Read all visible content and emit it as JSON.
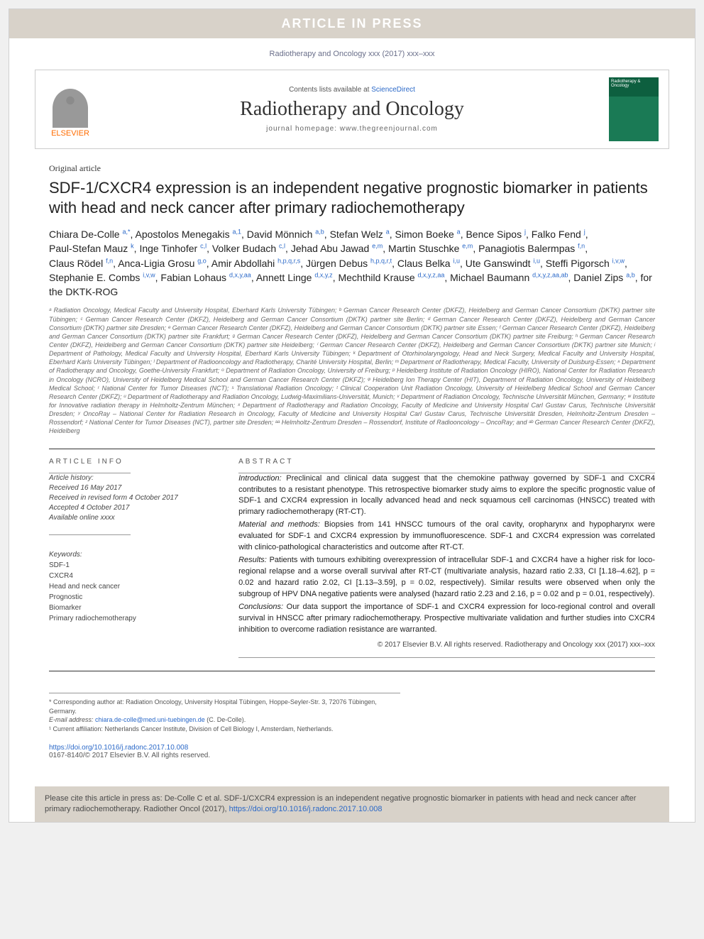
{
  "banner": "ARTICLE IN PRESS",
  "citation_line": "Radiotherapy and Oncology xxx (2017) xxx–xxx",
  "header": {
    "contents_prefix": "Contents lists available at ",
    "contents_link": "ScienceDirect",
    "journal_name": "Radiotherapy and Oncology",
    "homepage_prefix": "journal homepage: ",
    "homepage_url": "www.thegreenjournal.com",
    "publisher": "ELSEVIER",
    "cover_title": "Radiotherapy & Oncology"
  },
  "article_type": "Original article",
  "title": "SDF-1/CXCR4 expression is an independent negative prognostic biomarker in patients with head and neck cancer after primary radiochemotherapy",
  "authors": [
    {
      "name": "Chiara De-Colle",
      "aff": "a,*"
    },
    {
      "name": "Apostolos Menegakis",
      "aff": "a,1"
    },
    {
      "name": "David Mönnich",
      "aff": "a,b"
    },
    {
      "name": "Stefan Welz",
      "aff": "a"
    },
    {
      "name": "Simon Boeke",
      "aff": "a"
    },
    {
      "name": "Bence Sipos",
      "aff": "j"
    },
    {
      "name": "Falko Fend",
      "aff": "j"
    },
    {
      "name": "Paul-Stefan Mauz",
      "aff": "k"
    },
    {
      "name": "Inge Tinhofer",
      "aff": "c,l"
    },
    {
      "name": "Volker Budach",
      "aff": "c,l"
    },
    {
      "name": "Jehad Abu Jawad",
      "aff": "e,m"
    },
    {
      "name": "Martin Stuschke",
      "aff": "e,m"
    },
    {
      "name": "Panagiotis Balermpas",
      "aff": "f,n"
    },
    {
      "name": "Claus Rödel",
      "aff": "f,n"
    },
    {
      "name": "Anca-Ligia Grosu",
      "aff": "g,o"
    },
    {
      "name": "Amir Abdollahi",
      "aff": "h,p,q,r,s"
    },
    {
      "name": "Jürgen Debus",
      "aff": "h,p,q,r,t"
    },
    {
      "name": "Claus Belka",
      "aff": "i,u"
    },
    {
      "name": "Ute Ganswindt",
      "aff": "i,u"
    },
    {
      "name": "Steffi Pigorsch",
      "aff": "i,v,w"
    },
    {
      "name": "Stephanie E. Combs",
      "aff": "i,v,w"
    },
    {
      "name": "Fabian Lohaus",
      "aff": "d,x,y,aa"
    },
    {
      "name": "Annett Linge",
      "aff": "d,x,y,z"
    },
    {
      "name": "Mechthild Krause",
      "aff": "d,x,y,z,aa"
    },
    {
      "name": "Michael Baumann",
      "aff": "d,x,y,z,aa,ab"
    },
    {
      "name": "Daniel Zips",
      "aff": "a,b"
    }
  ],
  "authors_suffix": ", for the DKTK-ROG",
  "affiliations_text": "ᵃ Radiation Oncology, Medical Faculty and University Hospital, Eberhard Karls University Tübingen; ᵇ German Cancer Research Center (DKFZ), Heidelberg and German Cancer Consortium (DKTK) partner site Tübingen; ᶜ German Cancer Research Center (DKFZ), Heidelberg and German Cancer Consortium (DKTK) partner site Berlin; ᵈ German Cancer Research Center (DKFZ), Heidelberg and German Cancer Consortium (DKTK) partner site Dresden; ᵉ German Cancer Research Center (DKFZ), Heidelberg and German Cancer Consortium (DKTK) partner site Essen; ᶠ German Cancer Research Center (DKFZ), Heidelberg and German Cancer Consortium (DKTK) partner site Frankfurt; ᵍ German Cancer Research Center (DKFZ), Heidelberg and German Cancer Consortium (DKTK) partner site Freiburg; ʰ German Cancer Research Center (DKFZ), Heidelberg and German Cancer Consortium (DKTK) partner site Heidelberg; ⁱ German Cancer Research Center (DKFZ), Heidelberg and German Cancer Consortium (DKTK) partner site Munich; ʲ Department of Pathology, Medical Faculty and University Hospital, Eberhard Karls University Tübingen; ᵏ Department of Otorhinolaryngology, Head and Neck Surgery, Medical Faculty and University Hospital, Eberhard Karls University Tübingen; ˡ Department of Radiooncology and Radiotherapy, Charité University Hospital, Berlin; ᵐ Department of Radiotherapy, Medical Faculty, University of Duisburg-Essen; ⁿ Department of Radiotherapy and Oncology, Goethe-University Frankfurt; ᵒ Department of Radiation Oncology, University of Freiburg; ᵖ Heidelberg Institute of Radiation Oncology (HIRO), National Center for Radiation Research in Oncology (NCRO), University of Heidelberg Medical School and German Cancer Research Center (DKFZ); ᵠ Heidelberg Ion Therapy Center (HIT), Department of Radiation Oncology, University of Heidelberg Medical School; ʳ National Center for Tumor Diseases (NCT); ˢ Translational Radiation Oncology; ᵗ Clinical Cooperation Unit Radiation Oncology, University of Heidelberg Medical School and German Cancer Research Center (DKFZ); ᵘ Department of Radiotherapy and Radiation Oncology, Ludwig-Maximilians-Universität, Munich; ᵛ Department of Radiation Oncology, Technische Universität München, Germany; ʷ Institute for Innovative radiation therapy in Helmholtz-Zentrum München; ˣ Department of Radiotherapy and Radiation Oncology, Faculty of Medicine and University Hospital Carl Gustav Carus, Technische Universität Dresden; ʸ OncoRay – National Center for Radiation Research in Oncology, Faculty of Medicine and University Hospital Carl Gustav Carus, Technische Universität Dresden, Helmholtz-Zentrum Dresden – Rossendorf; ᶻ National Center for Tumor Diseases (NCT), partner site Dresden; ᵃᵃ Helmholtz-Zentrum Dresden – Rossendorf, Institute of Radiooncology – OncoRay; and ᵃᵇ German Cancer Research Center (DKFZ), Heidelberg",
  "article_info_head": "ARTICLE INFO",
  "abstract_head": "ABSTRACT",
  "history": {
    "label": "Article history:",
    "received": "Received 16 May 2017",
    "revised": "Received in revised form 4 October 2017",
    "accepted": "Accepted 4 October 2017",
    "online": "Available online xxxx"
  },
  "keywords": {
    "label": "Keywords:",
    "items": [
      "SDF-1",
      "CXCR4",
      "Head and neck cancer",
      "Prognostic",
      "Biomarker",
      "Primary radiochemotherapy"
    ]
  },
  "abstract": {
    "intro_label": "Introduction:",
    "intro": " Preclinical and clinical data suggest that the chemokine pathway governed by SDF-1 and CXCR4 contributes to a resistant phenotype. This retrospective biomarker study aims to explore the specific prognostic value of SDF-1 and CXCR4 expression in locally advanced head and neck squamous cell carcinomas (HNSCC) treated with primary radiochemotherapy (RT-CT).",
    "methods_label": "Material and methods:",
    "methods": " Biopsies from 141 HNSCC tumours of the oral cavity, oropharynx and hypopharynx were evaluated for SDF-1 and CXCR4 expression by immunofluorescence. SDF-1 and CXCR4 expression was correlated with clinico-pathological characteristics and outcome after RT-CT.",
    "results_label": "Results:",
    "results": " Patients with tumours exhibiting overexpression of intracellular SDF-1 and CXCR4 have a higher risk for loco-regional relapse and a worse overall survival after RT-CT (multivariate analysis, hazard ratio 2.33, CI [1.18–4.62], p = 0.02 and hazard ratio 2.02, CI [1.13–3.59], p = 0.02, respectively). Similar results were observed when only the subgroup of HPV DNA negative patients were analysed (hazard ratio 2.23 and 2.16, p = 0.02 and p = 0.01, respectively).",
    "conclusions_label": "Conclusions:",
    "conclusions": " Our data support the importance of SDF-1 and CXCR4 expression for loco-regional control and overall survival in HNSCC after primary radiochemotherapy. Prospective multivariate validation and further studies into CXCR4 inhibition to overcome radiation resistance are warranted.",
    "copyright": "© 2017 Elsevier B.V. All rights reserved. Radiotherapy and Oncology xxx (2017) xxx–xxx"
  },
  "footnotes": {
    "corresponding_label": "* Corresponding author at: ",
    "corresponding": "Radiation Oncology, University Hospital Tübingen, Hoppe-Seyler-Str. 3, 72076 Tübingen, Germany.",
    "email_label": "E-mail address: ",
    "email": "chiara.de-colle@med.uni-tuebingen.de",
    "email_suffix": " (C. De-Colle).",
    "current_label": "¹ Current affiliation: ",
    "current": "Netherlands Cancer Institute, Division of Cell Biology I, Amsterdam, Netherlands."
  },
  "doi": {
    "url": "https://doi.org/10.1016/j.radonc.2017.10.008",
    "issn": "0167-8140/© 2017 Elsevier B.V. All rights reserved."
  },
  "cite_box": {
    "prefix": "Please cite this article in press as: De-Colle C et al. SDF-1/CXCR4 expression is an independent negative prognostic biomarker in patients with head and neck cancer after primary radiochemotherapy. Radiother Oncol (2017), ",
    "url": "https://doi.org/10.1016/j.radonc.2017.10.008"
  }
}
